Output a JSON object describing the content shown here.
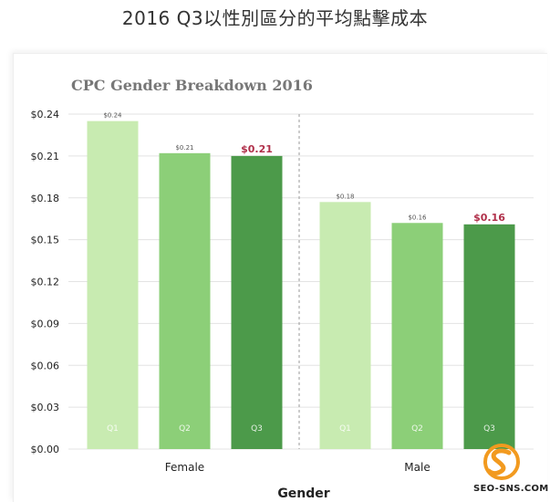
{
  "page_title": "2016 Q3以性別區分的平均點擊成本",
  "chart_data": {
    "type": "bar",
    "title": "CPC Gender Breakdown 2016",
    "xlabel": "Gender",
    "ylabel": "",
    "ylim": [
      0,
      0.24
    ],
    "yticks": [
      "$0.24",
      "$0.21",
      "$0.18",
      "$0.15",
      "$0.12",
      "$0.09",
      "$0.06",
      "$0.03",
      "$0.00"
    ],
    "ytick_values": [
      0.24,
      0.21,
      0.18,
      0.15,
      0.12,
      0.09,
      0.06,
      0.03,
      0.0
    ],
    "categories": [
      "Female",
      "Male"
    ],
    "series": [
      {
        "name": "Q1",
        "values": [
          0.235,
          0.177
        ],
        "labels": [
          "$0.24",
          "$0.18"
        ],
        "color": "#c8ebb1"
      },
      {
        "name": "Q2",
        "values": [
          0.212,
          0.162
        ],
        "labels": [
          "$0.21",
          "$0.16"
        ],
        "color": "#8ccf78"
      },
      {
        "name": "Q3",
        "values": [
          0.21,
          0.161
        ],
        "labels": [
          "$0.21",
          "$0.16"
        ],
        "color": "#4c9a4a"
      }
    ],
    "highlight_series": "Q3",
    "highlight_color": "#b0304a",
    "grid": "horizontal",
    "group_divider": "dashed"
  },
  "watermark": {
    "text": "SEO-SNS.COM",
    "color": "#f29a1f"
  }
}
